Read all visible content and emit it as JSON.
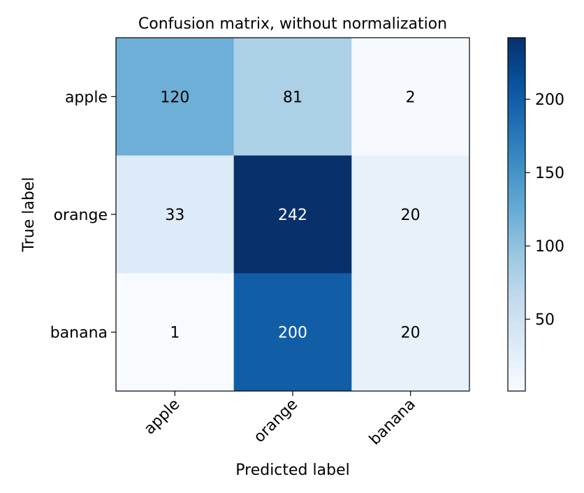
{
  "chart_data": {
    "type": "heatmap",
    "title": "Confusion matrix, without normalization",
    "xlabel": "Predicted label",
    "ylabel": "True label",
    "x_categories": [
      "apple",
      "orange",
      "banana"
    ],
    "y_categories": [
      "apple",
      "orange",
      "banana"
    ],
    "values": [
      [
        120,
        81,
        2
      ],
      [
        33,
        242,
        20
      ],
      [
        1,
        200,
        20
      ]
    ],
    "colormap": "Blues",
    "color_range": [
      1,
      242
    ],
    "colorbar": {
      "ticks": [
        50,
        100,
        150,
        200
      ],
      "tick_labels": [
        "50",
        "100",
        "150",
        "200"
      ]
    },
    "text_color_dark": "#000000",
    "text_color_light": "#ffffff",
    "grid": false
  }
}
